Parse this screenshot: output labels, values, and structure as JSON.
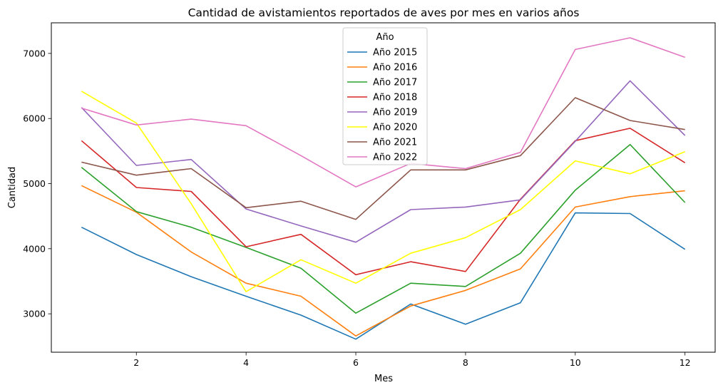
{
  "chart_data": {
    "type": "line",
    "title": "Cantidad de avistamientos reportados de aves por mes en varios años",
    "xlabel": "Mes",
    "ylabel": "Cantidad",
    "x": [
      1,
      2,
      3,
      4,
      5,
      6,
      7,
      8,
      9,
      10,
      11,
      12
    ],
    "xticks": [
      2,
      4,
      6,
      8,
      10,
      12
    ],
    "yticks": [
      3000,
      4000,
      5000,
      6000,
      7000
    ],
    "xlim": [
      0.45,
      12.55
    ],
    "ylim": [
      2410,
      7470
    ],
    "grid": false,
    "legend": {
      "title": "Año",
      "placement": "upper-center"
    },
    "series": [
      {
        "name": "Año 2015",
        "color": "#1f77b4",
        "values": [
          4330,
          3910,
          3570,
          3270,
          2980,
          2610,
          3150,
          2840,
          3170,
          4550,
          4540,
          3990
        ]
      },
      {
        "name": "Año 2016",
        "color": "#ff7f0e",
        "values": [
          4970,
          4560,
          3950,
          3470,
          3270,
          2660,
          3120,
          3360,
          3690,
          4640,
          4800,
          4890
        ]
      },
      {
        "name": "Año 2017",
        "color": "#2ca02c",
        "values": [
          5250,
          4570,
          4330,
          4020,
          3700,
          3010,
          3470,
          3420,
          3930,
          4900,
          5600,
          4710
        ]
      },
      {
        "name": "Año 2018",
        "color": "#d62728",
        "values": [
          5660,
          4940,
          4880,
          4030,
          4220,
          3600,
          3800,
          3650,
          4760,
          5660,
          5850,
          5320
        ]
      },
      {
        "name": "Año 2019",
        "color": "#9467bd",
        "values": [
          6170,
          5280,
          5370,
          4610,
          4350,
          4100,
          4600,
          4640,
          4750,
          5650,
          6580,
          5740
        ]
      },
      {
        "name": "Año 2020",
        "color": "#ffff00",
        "values": [
          6420,
          5930,
          4690,
          3340,
          3830,
          3470,
          3930,
          4170,
          4600,
          5350,
          5150,
          5490
        ]
      },
      {
        "name": "Año 2021",
        "color": "#8c564b",
        "values": [
          5330,
          5130,
          5230,
          4630,
          4730,
          4450,
          5210,
          5210,
          5430,
          6320,
          5970,
          5830
        ]
      },
      {
        "name": "Año 2022",
        "color": "#e377c2",
        "values": [
          6160,
          5900,
          5990,
          5890,
          5430,
          4950,
          5310,
          5230,
          5480,
          7060,
          7240,
          6940
        ]
      }
    ]
  }
}
